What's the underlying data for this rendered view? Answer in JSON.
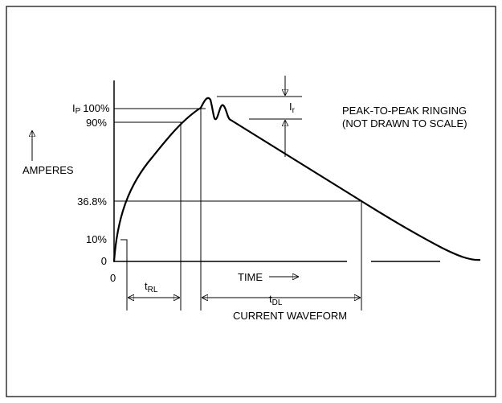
{
  "y_labels": {
    "peak": {
      "symbol": "I",
      "subscript": "P",
      "percent": "100%"
    },
    "ninety": "90%",
    "axis": "AMPERES",
    "e_fold": "36.8%",
    "ten": "10%",
    "zero": "0"
  },
  "x_origin": "0",
  "t_rl": {
    "symbol": "t",
    "subscript": "RL"
  },
  "time": "TIME",
  "t_dl": {
    "symbol": "t",
    "subscript": "DL"
  },
  "caption": "CURRENT WAVEFORM",
  "ringing": {
    "symbol": "I",
    "subscript": "r",
    "note_lines": [
      "PEAK-TO-PEAK RINGING",
      "(NOT DRAWN TO SCALE)"
    ]
  }
}
